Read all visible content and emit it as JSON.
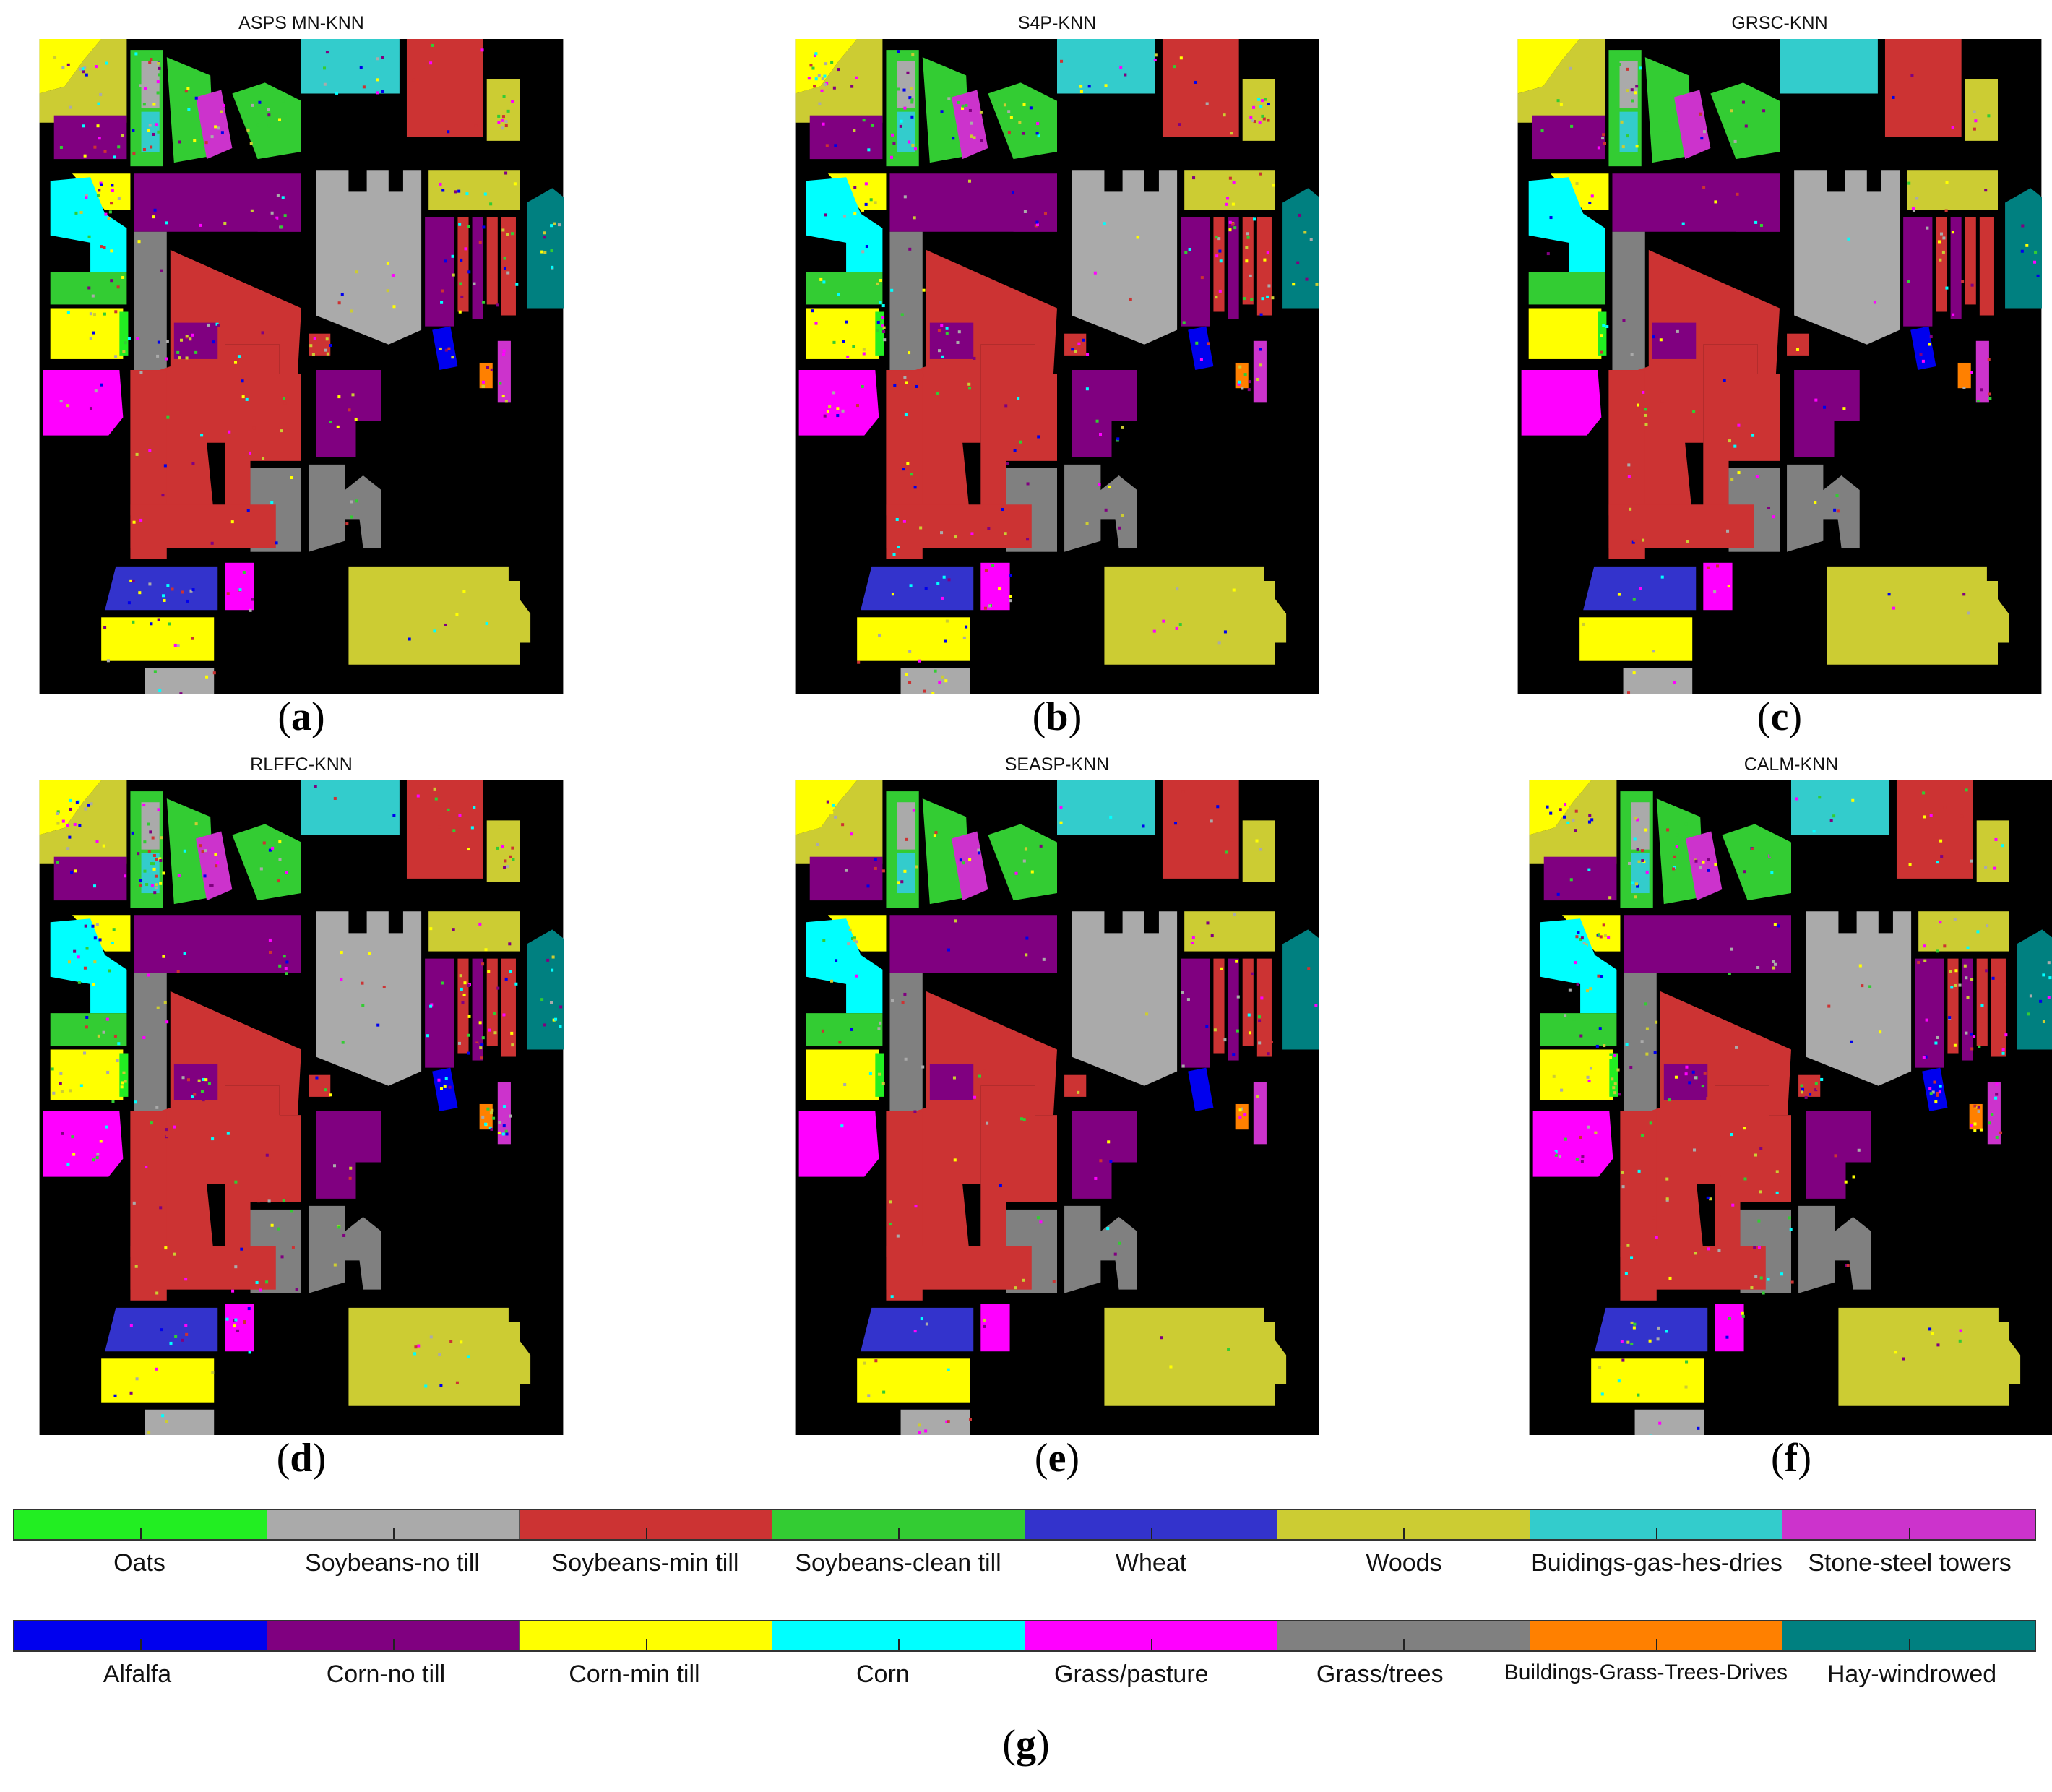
{
  "panels": [
    {
      "title": "ASPS MN-KNN",
      "caption_letter": "a"
    },
    {
      "title": "S4P-KNN",
      "caption_letter": "b"
    },
    {
      "title": "GRSC-KNN",
      "caption_letter": "c"
    },
    {
      "title": "RLFFC-KNN",
      "caption_letter": "d"
    },
    {
      "title": "SEASP-KNN",
      "caption_letter": "e"
    },
    {
      "title": "CALM-KNN",
      "caption_letter": "f"
    }
  ],
  "legend": {
    "caption_letter": "g",
    "row1": [
      {
        "label": "Oats",
        "color": "#22ee22"
      },
      {
        "label": "Soybeans-no till",
        "color": "#aaaaaa"
      },
      {
        "label": "Soybeans-min till",
        "color": "#cc3333"
      },
      {
        "label": "Soybeans-clean till",
        "color": "#33cc33"
      },
      {
        "label": "Wheat",
        "color": "#3333cc"
      },
      {
        "label": "Woods",
        "color": "#cccc33"
      },
      {
        "label": "Buidings-gas-hes-dries",
        "color": "#33cccc"
      },
      {
        "label": "Stone-steel towers",
        "color": "#cc33cc"
      }
    ],
    "row2": [
      {
        "label": "Alfalfa",
        "color": "#0000ee"
      },
      {
        "label": "Corn-no till",
        "color": "#800080"
      },
      {
        "label": "Corn-min till",
        "color": "#ffff00"
      },
      {
        "label": "Corn",
        "color": "#00ffff"
      },
      {
        "label": "Grass/pasture",
        "color": "#ff00ff"
      },
      {
        "label": "Grass/trees",
        "color": "#808080"
      },
      {
        "label": "Buildings-Grass-Trees-Drives",
        "color": "#ff8000"
      },
      {
        "label": "Hay-windrowed",
        "color": "#008080"
      }
    ]
  }
}
